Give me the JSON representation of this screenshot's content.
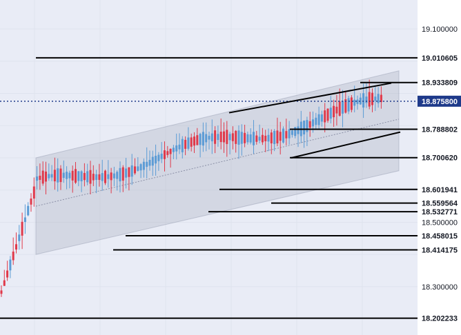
{
  "chart_data": {
    "type": "candlestick",
    "title": "",
    "xlabel": "",
    "ylabel": "",
    "ylim": [
      18.15,
      19.19
    ],
    "grid": true,
    "y_ticks": [
      "19.100000",
      "18.500000",
      "18.300000"
    ],
    "current_price": "18.875800",
    "levels": [
      {
        "label": "19.010605",
        "value": 19.010605
      },
      {
        "label": "18.933809",
        "value": 18.933809
      },
      {
        "label": "18.788802",
        "value": 18.788802
      },
      {
        "label": "18.700620",
        "value": 18.70062
      },
      {
        "label": "18.601941",
        "value": 18.601941
      },
      {
        "label": "18.559564",
        "value": 18.559564
      },
      {
        "label": "18.532771",
        "value": 18.532771
      },
      {
        "label": "18.458015",
        "value": 18.458015
      },
      {
        "label": "18.414175",
        "value": 18.414175
      },
      {
        "label": "18.202233",
        "value": 18.202233
      }
    ],
    "channel": {
      "upper": [
        18.7,
        18.97
      ],
      "lower": [
        18.4,
        18.66
      ],
      "median": [
        18.55,
        18.82
      ]
    },
    "trendlines": [
      [
        18.84,
        18.932
      ],
      [
        18.7,
        18.78
      ]
    ],
    "colors": {
      "up": "#5b9bd5",
      "down": "#e0394a",
      "current": "#1e3a8a",
      "channel": "#9aa0b4",
      "line": "#000000",
      "grid": "#dfe3ee",
      "background": "#e9ecf6"
    }
  }
}
